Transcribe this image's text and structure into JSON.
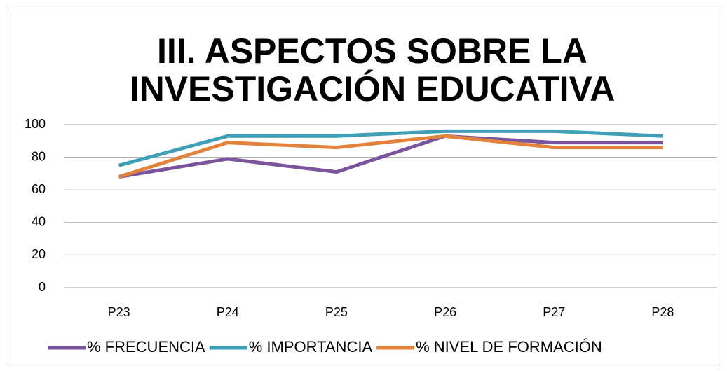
{
  "chart_data": {
    "type": "line",
    "title": "III. ASPECTOS SOBRE LA INVESTIGACIÓN EDUCATIVA",
    "categories": [
      "P23",
      "P24",
      "P25",
      "P26",
      "P27",
      "P28"
    ],
    "series": [
      {
        "name": "% FRECUENCIA",
        "color": "#7a559b",
        "values": [
          68,
          79,
          71,
          93,
          89,
          89
        ]
      },
      {
        "name": "% IMPORTANCIA",
        "color": "#3e9fb6",
        "values": [
          75,
          93,
          93,
          96,
          96,
          93
        ]
      },
      {
        "name": "% NIVEL DE FORMACIÓN",
        "color": "#e2823b",
        "values": [
          68,
          89,
          86,
          93,
          86,
          86
        ]
      }
    ],
    "ylim": [
      0,
      100
    ],
    "yticks": [
      0,
      20,
      40,
      60,
      80,
      100
    ],
    "grid": true,
    "legend": "bottom"
  }
}
